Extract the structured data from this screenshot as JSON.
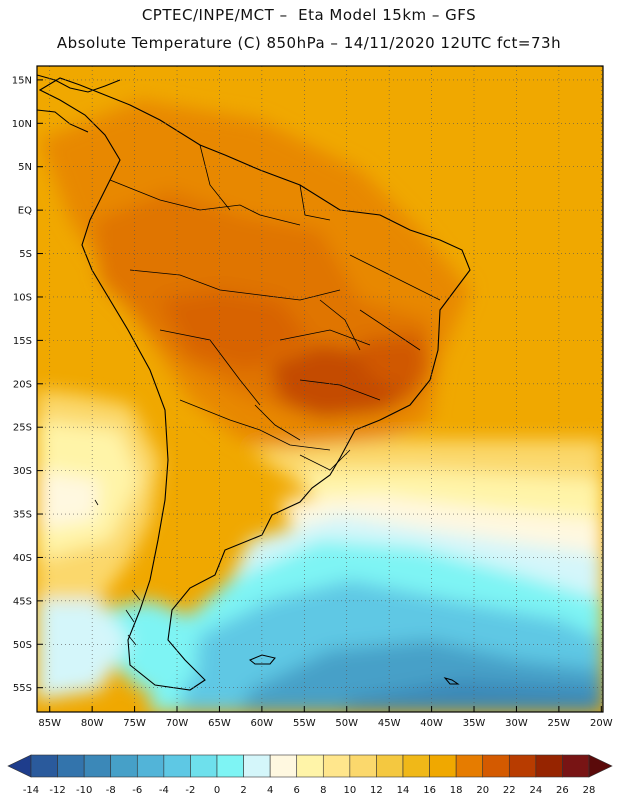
{
  "header": {
    "line1": "CPTEC/INPE/MCT –  Eta Model 15km – GFS",
    "line2": "Absolute Temperature (C) 850hPa – 14/11/2020 12UTC fct=73h"
  },
  "map": {
    "lat_labels": [
      "15N",
      "10N",
      "5N",
      "EQ",
      "5S",
      "10S",
      "15S",
      "20S",
      "25S",
      "30S",
      "35S",
      "40S",
      "45S",
      "50S",
      "55S"
    ],
    "lon_labels": [
      "85W",
      "80W",
      "75W",
      "70W",
      "65W",
      "60W",
      "55W",
      "50W",
      "45W",
      "40W",
      "35W",
      "30W",
      "25W",
      "20W"
    ],
    "lat_values": [
      15,
      10,
      5,
      0,
      -5,
      -10,
      -15,
      -20,
      -25,
      -30,
      -35,
      -40,
      -45,
      -50,
      -55
    ],
    "lon_values": [
      -85,
      -80,
      -75,
      -70,
      -65,
      -60,
      -55,
      -50,
      -45,
      -40,
      -35,
      -30,
      -25,
      -20
    ],
    "background_color": "#f0a800"
  },
  "colorbar": {
    "labels": [
      "-14",
      "-12",
      "-10",
      "-8",
      "-6",
      "-4",
      "-2",
      "0",
      "2",
      "4",
      "6",
      "8",
      "10",
      "12",
      "14",
      "16",
      "18",
      "20",
      "22",
      "24",
      "26",
      "28"
    ],
    "colors": [
      "#1e3d8c",
      "#2a5a9c",
      "#3374ac",
      "#3b88b8",
      "#46a0c8",
      "#52b4d8",
      "#5ec8e4",
      "#6ee0ec",
      "#7ef4f4",
      "#d4f6fa",
      "#fff8e0",
      "#fff4a8",
      "#ffe68c",
      "#fbd86c",
      "#f4c840",
      "#f0b818",
      "#f0a800",
      "#e67c00",
      "#d45a00",
      "#b83c00",
      "#962400",
      "#781414",
      "#5a0a0a"
    ]
  }
}
